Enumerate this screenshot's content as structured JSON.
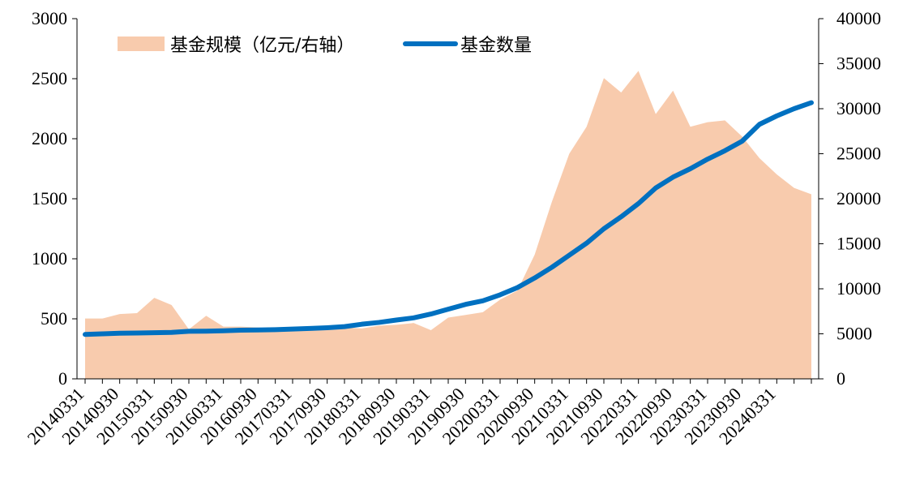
{
  "chart_data": {
    "type": "area+line",
    "series": [
      {
        "name": "基金规模（亿元/右轴）",
        "kind": "area",
        "axis": "right",
        "color": "#F8CBAD",
        "values": [
          6700,
          6700,
          7200,
          7300,
          9000,
          8200,
          5500,
          7000,
          5800,
          5800,
          5700,
          5600,
          5600,
          5500,
          5600,
          5700,
          5600,
          5900,
          6000,
          6200,
          5400,
          6800,
          7100,
          7400,
          8800,
          9800,
          13800,
          19700,
          25000,
          28000,
          33400,
          31800,
          34200,
          29400,
          32000,
          28000,
          28500,
          28700,
          26900,
          24500,
          22700,
          21200,
          20500
        ]
      },
      {
        "name": "基金数量",
        "kind": "line",
        "axis": "left",
        "color": "#0070C0",
        "values": [
          370,
          375,
          380,
          382,
          384,
          387,
          396,
          397,
          400,
          405,
          407,
          410,
          415,
          420,
          426,
          435,
          455,
          470,
          490,
          508,
          540,
          580,
          620,
          650,
          700,
          760,
          840,
          930,
          1030,
          1130,
          1250,
          1350,
          1460,
          1590,
          1680,
          1750,
          1830,
          1900,
          1980,
          2120,
          2190,
          2250,
          2300
        ]
      }
    ],
    "x_tick_labels": [
      "20140331",
      "20140930",
      "20150331",
      "20150930",
      "20160331",
      "20160930",
      "20170331",
      "20170930",
      "20180331",
      "20180930",
      "20190331",
      "20190930",
      "20200331",
      "20200930",
      "20210331",
      "20210930",
      "20220331",
      "20220930",
      "20230331",
      "20230930",
      "20240331"
    ],
    "y_left": {
      "ticks": [
        "0",
        "500",
        "1000",
        "1500",
        "2000",
        "2500",
        "3000"
      ],
      "ylim": [
        0,
        3000
      ]
    },
    "y_right": {
      "ticks": [
        "0",
        "5000",
        "10000",
        "15000",
        "20000",
        "25000",
        "30000",
        "35000",
        "40000"
      ],
      "ylim": [
        0,
        40000
      ]
    },
    "legend": {
      "placement": "top-left"
    },
    "grid": false
  }
}
